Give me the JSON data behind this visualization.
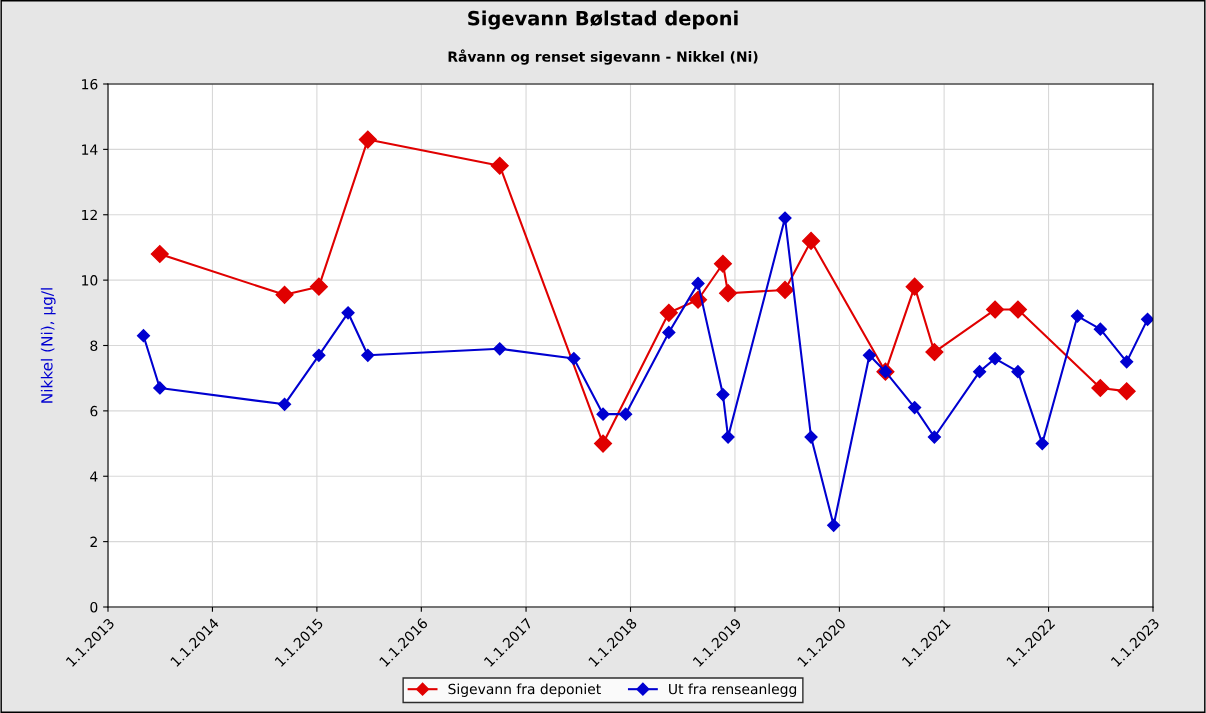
{
  "chart_data": {
    "type": "line",
    "title": "Sigevann Bølstad deponi",
    "subtitle": "Råvann og renset sigevann - Nikkel (Ni)",
    "ylabel": "Nikkel (Ni), µg/l",
    "series": [
      {
        "name": "Sigevann fra deponiet",
        "color": "#e00000",
        "x": [
          "2013-07-01",
          "2014-09-10",
          "2015-01-08",
          "2015-06-28",
          "2016-10-01",
          "2017-09-27",
          "2018-05-15",
          "2018-08-25",
          "2018-11-20",
          "2018-12-08",
          "2019-06-25",
          "2019-09-24",
          "2020-06-10",
          "2020-09-20",
          "2020-11-28",
          "2021-06-28",
          "2021-09-16",
          "2022-07-01",
          "2022-10-01"
        ],
        "values": [
          10.8,
          9.55,
          9.8,
          14.3,
          13.5,
          5.0,
          9.0,
          9.4,
          10.5,
          9.6,
          9.7,
          11.2,
          7.2,
          9.8,
          7.8,
          9.1,
          9.1,
          6.7,
          6.6
        ]
      },
      {
        "name": "Ut fra renseanlegg",
        "color": "#0000d0",
        "x": [
          "2013-05-05",
          "2013-07-01",
          "2014-09-10",
          "2015-01-08",
          "2015-04-20",
          "2015-06-28",
          "2016-10-01",
          "2017-06-17",
          "2017-09-27",
          "2017-12-15",
          "2018-05-15",
          "2018-08-25",
          "2018-11-20",
          "2018-12-08",
          "2019-06-25",
          "2019-09-24",
          "2019-12-12",
          "2020-04-15",
          "2020-06-10",
          "2020-09-20",
          "2020-11-28",
          "2021-05-05",
          "2021-06-28",
          "2021-09-16",
          "2021-12-10",
          "2022-04-12",
          "2022-07-01",
          "2022-10-01",
          "2022-12-13"
        ],
        "values": [
          8.3,
          6.7,
          6.2,
          7.7,
          9.0,
          7.7,
          7.9,
          7.6,
          5.9,
          5.9,
          8.4,
          9.9,
          6.5,
          5.2,
          11.9,
          5.2,
          2.5,
          7.7,
          7.2,
          6.1,
          5.2,
          7.2,
          7.6,
          7.2,
          5.0,
          8.9,
          8.5,
          7.5,
          8.8
        ]
      }
    ],
    "xlim": [
      "2013-01-01",
      "2023-01-01"
    ],
    "xticks": [
      {
        "value": "2013-01-01",
        "label": "1.1.2013"
      },
      {
        "value": "2014-01-01",
        "label": "1.1.2014"
      },
      {
        "value": "2015-01-01",
        "label": "1.1.2015"
      },
      {
        "value": "2016-01-01",
        "label": "1.1.2016"
      },
      {
        "value": "2017-01-01",
        "label": "1.1.2017"
      },
      {
        "value": "2018-01-01",
        "label": "1.1.2018"
      },
      {
        "value": "2019-01-01",
        "label": "1.1.2019"
      },
      {
        "value": "2020-01-01",
        "label": "1.1.2020"
      },
      {
        "value": "2021-01-01",
        "label": "1.1.2021"
      },
      {
        "value": "2022-01-01",
        "label": "1.1.2022"
      },
      {
        "value": "2023-01-01",
        "label": "1.1.2023"
      }
    ],
    "ylim": [
      0,
      16
    ],
    "yticks": [
      0,
      2,
      4,
      6,
      8,
      10,
      12,
      14,
      16
    ],
    "grid": true,
    "legend": "bottom",
    "marker": "diamond",
    "line_style": "solid"
  }
}
